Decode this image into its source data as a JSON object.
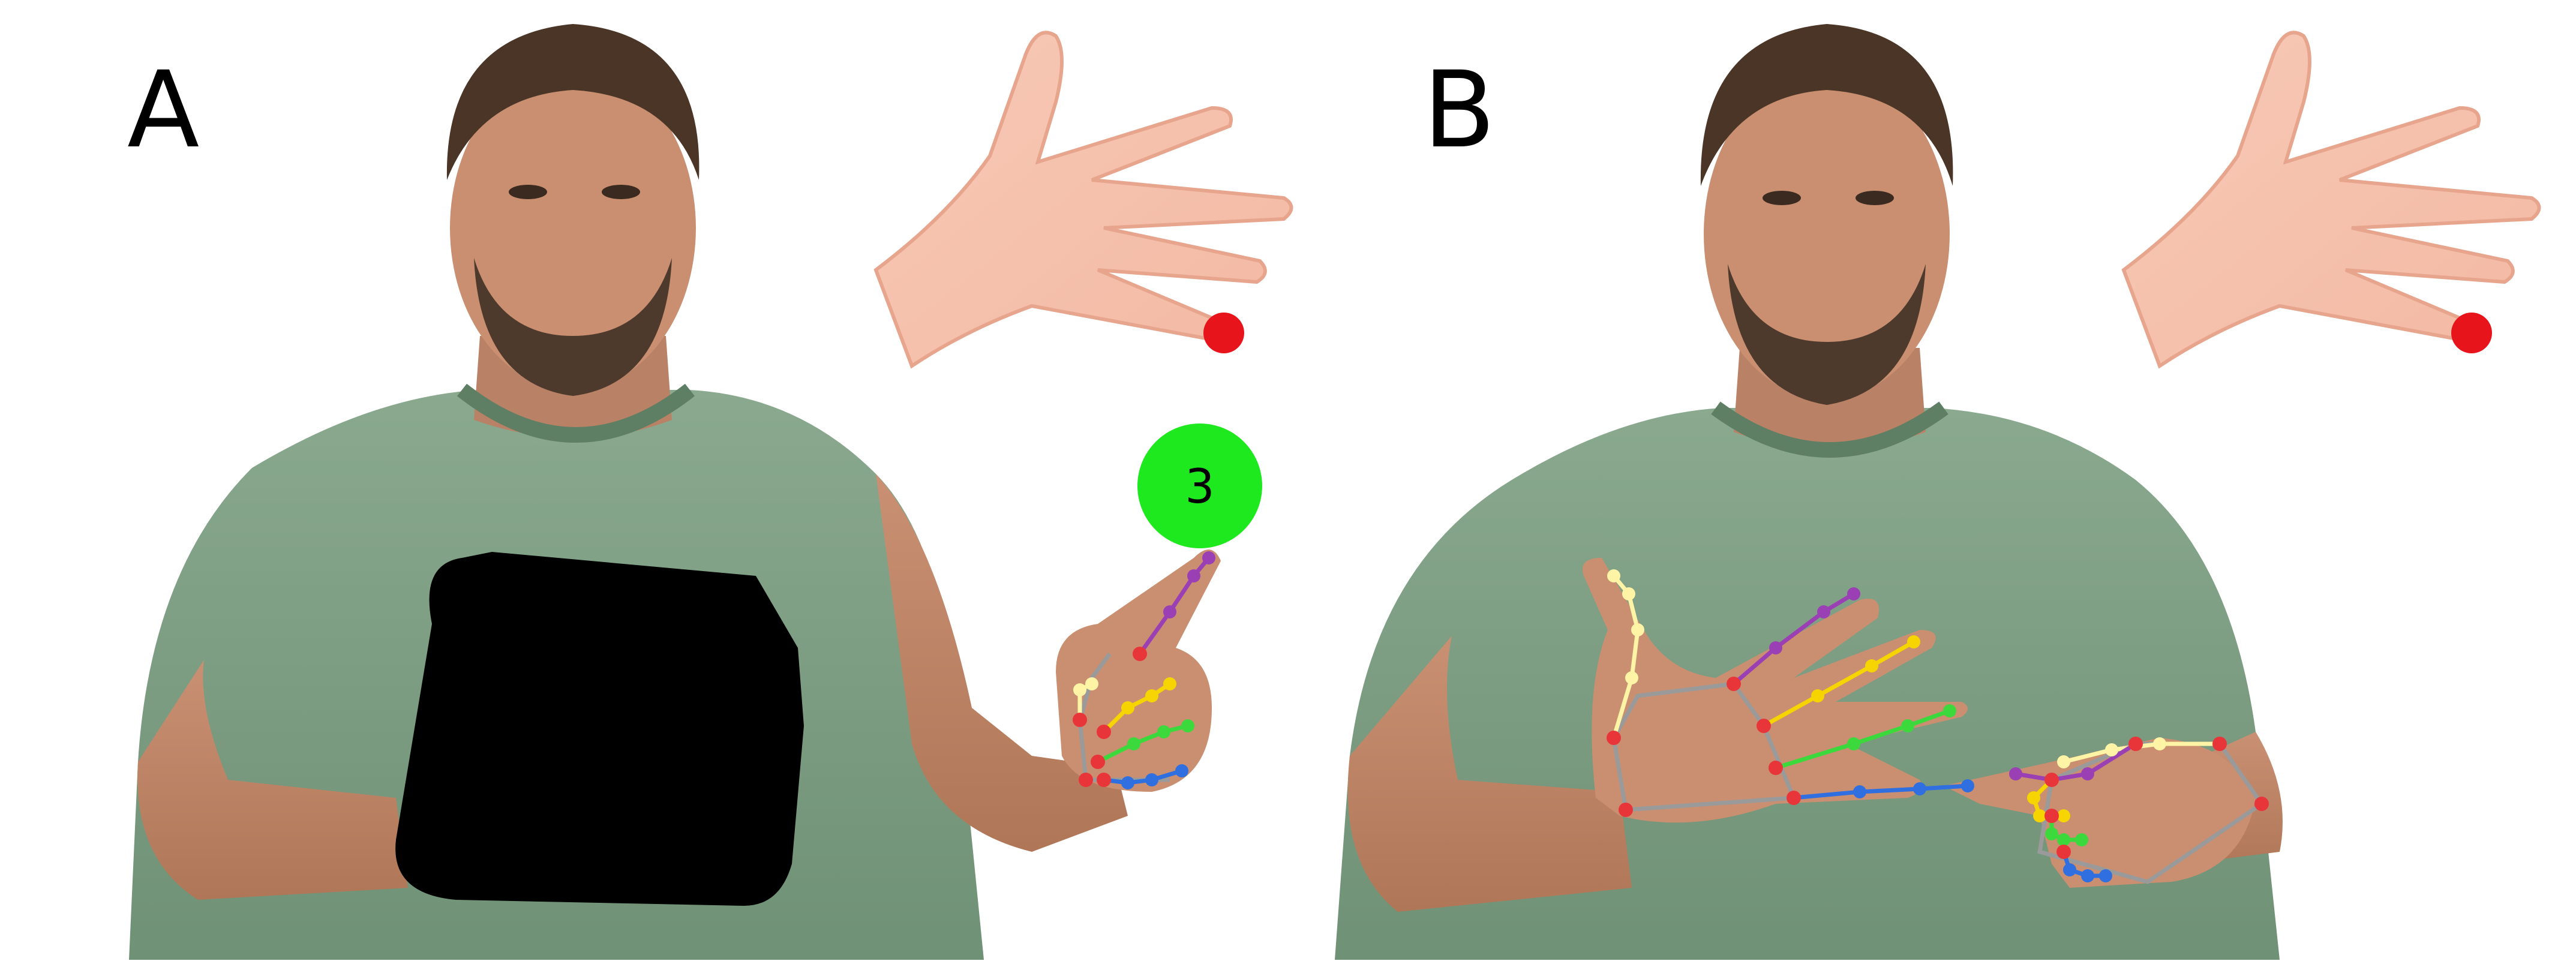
{
  "figure": {
    "panel_a": {
      "label": "A",
      "target_badge": {
        "text": "3",
        "color": "#1ee81e"
      },
      "target_marker_color": "#e8141c",
      "occluder_color": "#000000"
    },
    "panel_b": {
      "label": "B",
      "target_marker_color": "#e8141c"
    },
    "landmark_colors": {
      "thumb": "#fff3a6",
      "index": "#9b3fb4",
      "middle": "#f6d400",
      "ring": "#3cd93c",
      "pinky": "#2f6fe0",
      "joint": "#e8353a",
      "palm": "#9a9a9a"
    },
    "shirt_color": "#7a9c80"
  }
}
